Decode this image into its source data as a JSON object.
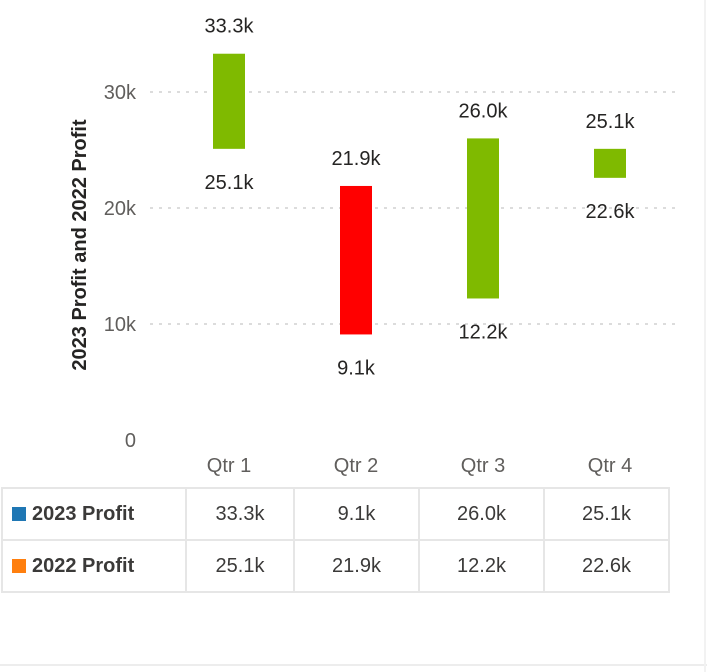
{
  "chart_data": {
    "type": "bar",
    "subtype": "floating-range",
    "title": "",
    "ylabel": "2023 Profit and 2022 Profit",
    "xlabel": "",
    "categories": [
      "Qtr 1",
      "Qtr 2",
      "Qtr 3",
      "Qtr 4"
    ],
    "series": [
      {
        "name": "2023 Profit",
        "values": [
          33.3,
          9.1,
          26.0,
          25.1
        ],
        "value_labels": [
          "33.3k",
          "9.1k",
          "26.0k",
          "25.1k"
        ],
        "color": "#1f77b4"
      },
      {
        "name": "2022 Profit",
        "values": [
          25.1,
          21.9,
          12.2,
          22.6
        ],
        "value_labels": [
          "25.1k",
          "21.9k",
          "12.2k",
          "22.6k"
        ],
        "color": "#ff7f0e"
      }
    ],
    "value_unit": "k",
    "ylim": [
      0,
      37
    ],
    "yticks": [
      0,
      10,
      20,
      30
    ],
    "ytick_labels": [
      "0",
      "10k",
      "20k",
      "30k"
    ],
    "increase_color": "#7fba00",
    "decrease_color": "#ff0000",
    "grid": true
  }
}
